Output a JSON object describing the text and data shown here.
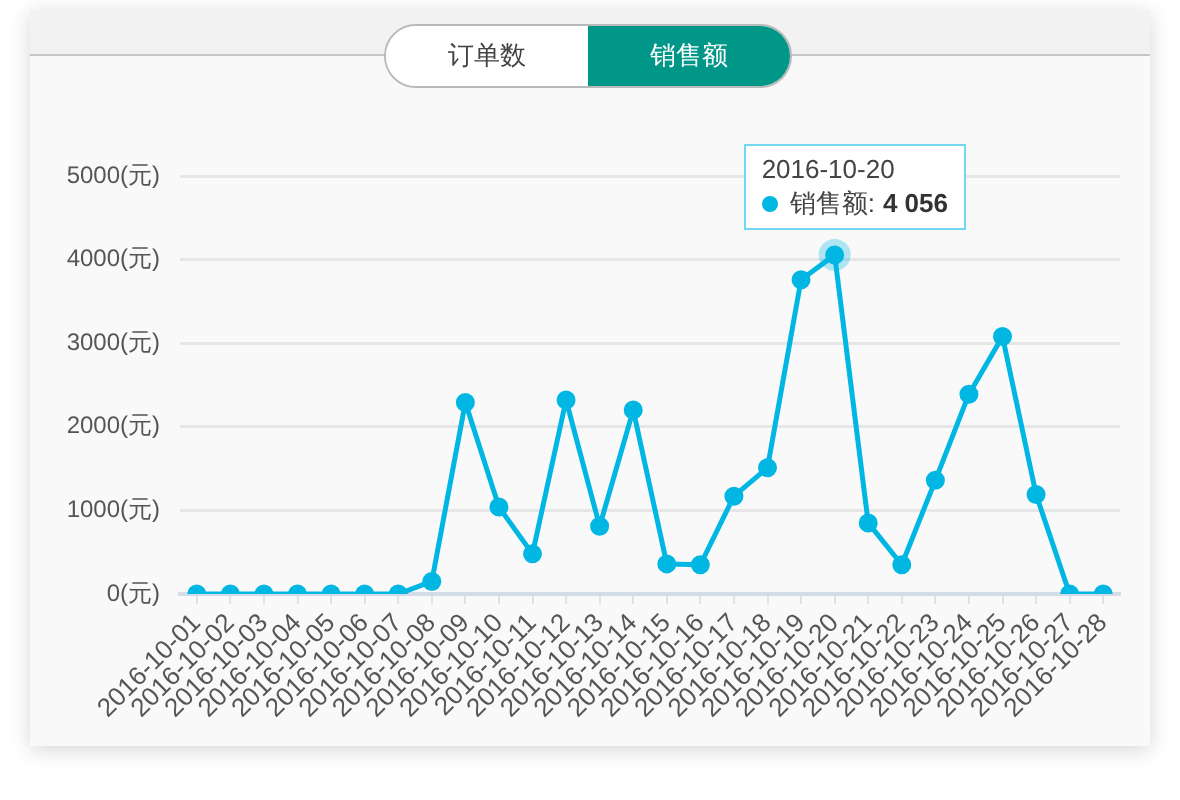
{
  "chart_data": {
    "type": "line",
    "categories": [
      "2016-10-01",
      "2016-10-02",
      "2016-10-03",
      "2016-10-04",
      "2016-10-05",
      "2016-10-06",
      "2016-10-07",
      "2016-10-08",
      "2016-10-09",
      "2016-10-10",
      "2016-10-11",
      "2016-10-12",
      "2016-10-13",
      "2016-10-14",
      "2016-10-15",
      "2016-10-16",
      "2016-10-17",
      "2016-10-18",
      "2016-10-19",
      "2016-10-20",
      "2016-10-21",
      "2016-10-22",
      "2016-10-23",
      "2016-10-24",
      "2016-10-25",
      "2016-10-26",
      "2016-10-27",
      "2016-10-28"
    ],
    "series": [
      {
        "name": "销售额:",
        "color": "#00b7e3",
        "values": [
          0,
          0,
          0,
          0,
          0,
          0,
          0,
          150,
          2290,
          1040,
          480,
          2320,
          810,
          2200,
          360,
          350,
          1170,
          1510,
          3760,
          4056,
          850,
          350,
          1360,
          2390,
          3080,
          1190,
          0,
          0
        ],
        "value_labels": [
          null,
          null,
          null,
          null,
          null,
          null,
          null,
          null,
          null,
          null,
          null,
          null,
          null,
          null,
          null,
          null,
          null,
          null,
          null,
          "4 056",
          null,
          null,
          null,
          null,
          null,
          null,
          null,
          null
        ]
      }
    ],
    "ylim": [
      0,
      5000
    ],
    "yticks": [
      {
        "value": 0,
        "label": "0(元)"
      },
      {
        "value": 1000,
        "label": "1000(元)"
      },
      {
        "value": 2000,
        "label": "2000(元)"
      },
      {
        "value": 3000,
        "label": "3000(元)"
      },
      {
        "value": 4000,
        "label": "4000(元)"
      },
      {
        "value": 5000,
        "label": "5000(元)"
      }
    ],
    "grid": "y",
    "marker": "circle",
    "annotations": [
      "订单数",
      "销售额"
    ]
  }
}
